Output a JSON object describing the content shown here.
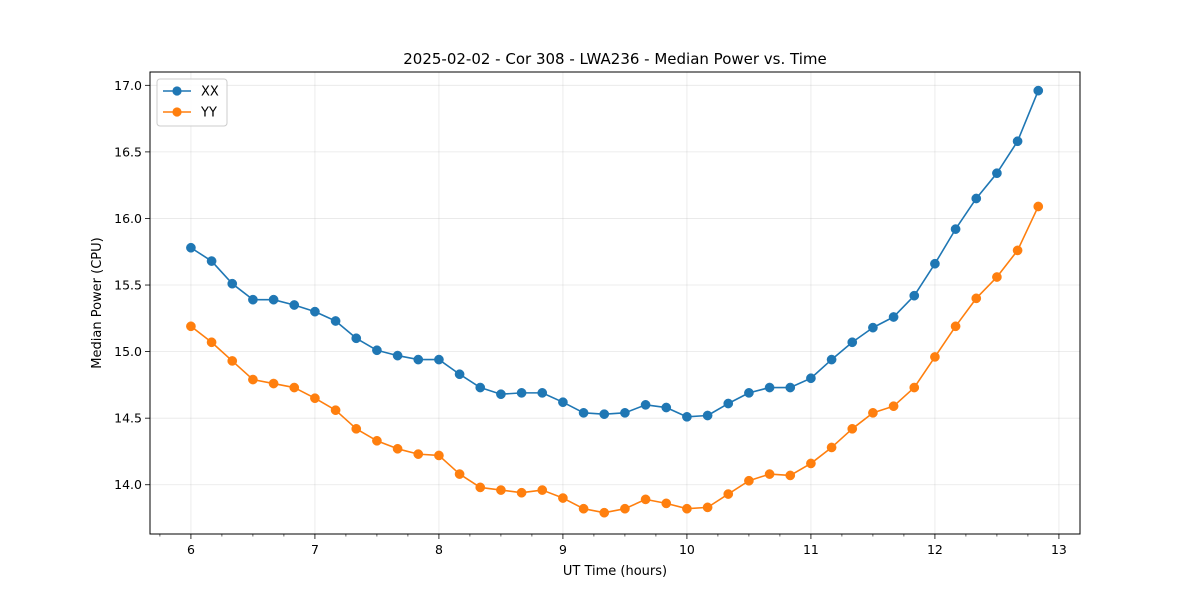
{
  "chart_data": {
    "type": "line",
    "title": "2025-02-02 - Cor 308 - LWA236 - Median Power vs. Time",
    "xlabel": "UT Time (hours)",
    "ylabel": "Median Power (CPU)",
    "xlim": [
      5.67,
      13.17
    ],
    "ylim": [
      13.63,
      17.1
    ],
    "xticks": [
      6,
      7,
      8,
      9,
      10,
      11,
      12,
      13
    ],
    "xtick_labels": [
      "6",
      "7",
      "8",
      "9",
      "10",
      "11",
      "12",
      "13"
    ],
    "yticks": [
      14.0,
      14.5,
      15.0,
      15.5,
      16.0,
      16.5,
      17.0
    ],
    "ytick_labels": [
      "14.0",
      "14.5",
      "15.0",
      "15.5",
      "16.0",
      "16.5",
      "17.0"
    ],
    "grid": true,
    "legend_position": "top-left",
    "x": [
      6.0,
      6.1667,
      6.3333,
      6.5,
      6.6667,
      6.8333,
      7.0,
      7.1667,
      7.3333,
      7.5,
      7.6667,
      7.8333,
      8.0,
      8.1667,
      8.3333,
      8.5,
      8.6667,
      8.8333,
      9.0,
      9.1667,
      9.3333,
      9.5,
      9.6667,
      9.8333,
      10.0,
      10.1667,
      10.3333,
      10.5,
      10.6667,
      10.8333,
      11.0,
      11.1667,
      11.3333,
      11.5,
      11.6667,
      11.8333,
      12.0,
      12.1667,
      12.3333,
      12.5,
      12.6667,
      12.8333
    ],
    "series": [
      {
        "name": "XX",
        "color": "#1f77b4",
        "values": [
          15.78,
          15.68,
          15.51,
          15.39,
          15.39,
          15.35,
          15.3,
          15.23,
          15.1,
          15.01,
          14.97,
          14.94,
          14.94,
          14.83,
          14.73,
          14.68,
          14.69,
          14.69,
          14.62,
          14.54,
          14.53,
          14.54,
          14.6,
          14.58,
          14.51,
          14.52,
          14.61,
          14.69,
          14.73,
          14.73,
          14.8,
          14.94,
          15.07,
          15.18,
          15.26,
          15.42,
          15.66,
          15.92,
          16.15,
          16.34,
          16.58,
          16.96
        ]
      },
      {
        "name": "YY",
        "color": "#ff7f0e",
        "values": [
          15.19,
          15.07,
          14.93,
          14.79,
          14.76,
          14.73,
          14.65,
          14.56,
          14.42,
          14.33,
          14.27,
          14.23,
          14.22,
          14.08,
          13.98,
          13.96,
          13.94,
          13.96,
          13.9,
          13.82,
          13.79,
          13.82,
          13.89,
          13.86,
          13.82,
          13.83,
          13.93,
          14.03,
          14.08,
          14.07,
          14.16,
          14.28,
          14.42,
          14.54,
          14.59,
          14.73,
          14.96,
          15.19,
          15.4,
          15.56,
          15.76,
          16.09
        ]
      }
    ]
  }
}
